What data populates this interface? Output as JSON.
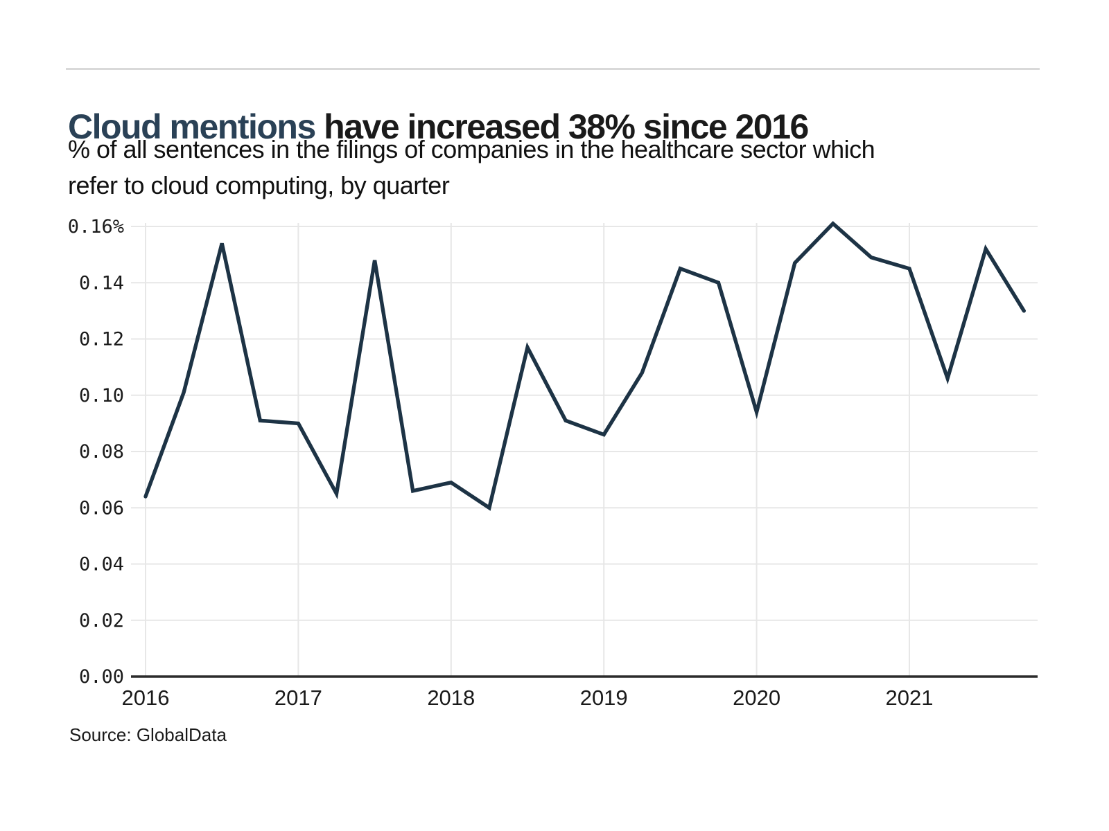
{
  "header": {
    "title_accent": "Cloud mentions",
    "title_rest": " have increased 38% since 2016",
    "subtitle_line1": "% of all sentences in the filings of companies in the healthcare sector which",
    "subtitle_line2": "refer to cloud computing, by quarter"
  },
  "footer": {
    "source": "Source: GlobalData"
  },
  "colors": {
    "accent_navy": "#2a4156",
    "title_black": "#1a1a1a",
    "line": "#1d3345",
    "gridline": "#e7e7e7",
    "axis_line": "#2b2b2b",
    "top_rule": "#d9d9d9"
  },
  "chart_data": {
    "type": "line",
    "title": "Cloud mentions have increased 38% since 2016",
    "subtitle": "% of all sentences in the filings of companies in the healthcare sector which refer to cloud computing, by quarter",
    "unit": "%",
    "grid": true,
    "legend": "none",
    "ylim": [
      0,
      0.16
    ],
    "categories": [
      "2016 Q1",
      "2016 Q2",
      "2016 Q3",
      "2016 Q4",
      "2017 Q1",
      "2017 Q2",
      "2017 Q3",
      "2017 Q4",
      "2018 Q1",
      "2018 Q2",
      "2018 Q3",
      "2018 Q4",
      "2019 Q1",
      "2019 Q2",
      "2019 Q3",
      "2019 Q4",
      "2020 Q1",
      "2020 Q2",
      "2020 Q3",
      "2020 Q4",
      "2021 Q1",
      "2021 Q2",
      "2021 Q3",
      "2021 Q4"
    ],
    "values": [
      0.064,
      0.101,
      0.154,
      0.091,
      0.09,
      0.065,
      0.148,
      0.066,
      0.069,
      0.06,
      0.117,
      0.091,
      0.086,
      0.108,
      0.145,
      0.14,
      0.094,
      0.147,
      0.161,
      0.149,
      0.145,
      0.106,
      0.152,
      0.13
    ],
    "x_ticks": [
      {
        "label": "2016",
        "index": 0
      },
      {
        "label": "2017",
        "index": 4
      },
      {
        "label": "2018",
        "index": 8
      },
      {
        "label": "2019",
        "index": 12
      },
      {
        "label": "2020",
        "index": 16
      },
      {
        "label": "2021",
        "index": 20
      }
    ],
    "y_ticks": [
      {
        "label": "0.16%",
        "value": 0.16
      },
      {
        "label": "0.14",
        "value": 0.14
      },
      {
        "label": "0.12",
        "value": 0.12
      },
      {
        "label": "0.10",
        "value": 0.1
      },
      {
        "label": "0.08",
        "value": 0.08
      },
      {
        "label": "0.06",
        "value": 0.06
      },
      {
        "label": "0.04",
        "value": 0.04
      },
      {
        "label": "0.02",
        "value": 0.02
      },
      {
        "label": "0.00",
        "value": 0.0
      }
    ]
  }
}
